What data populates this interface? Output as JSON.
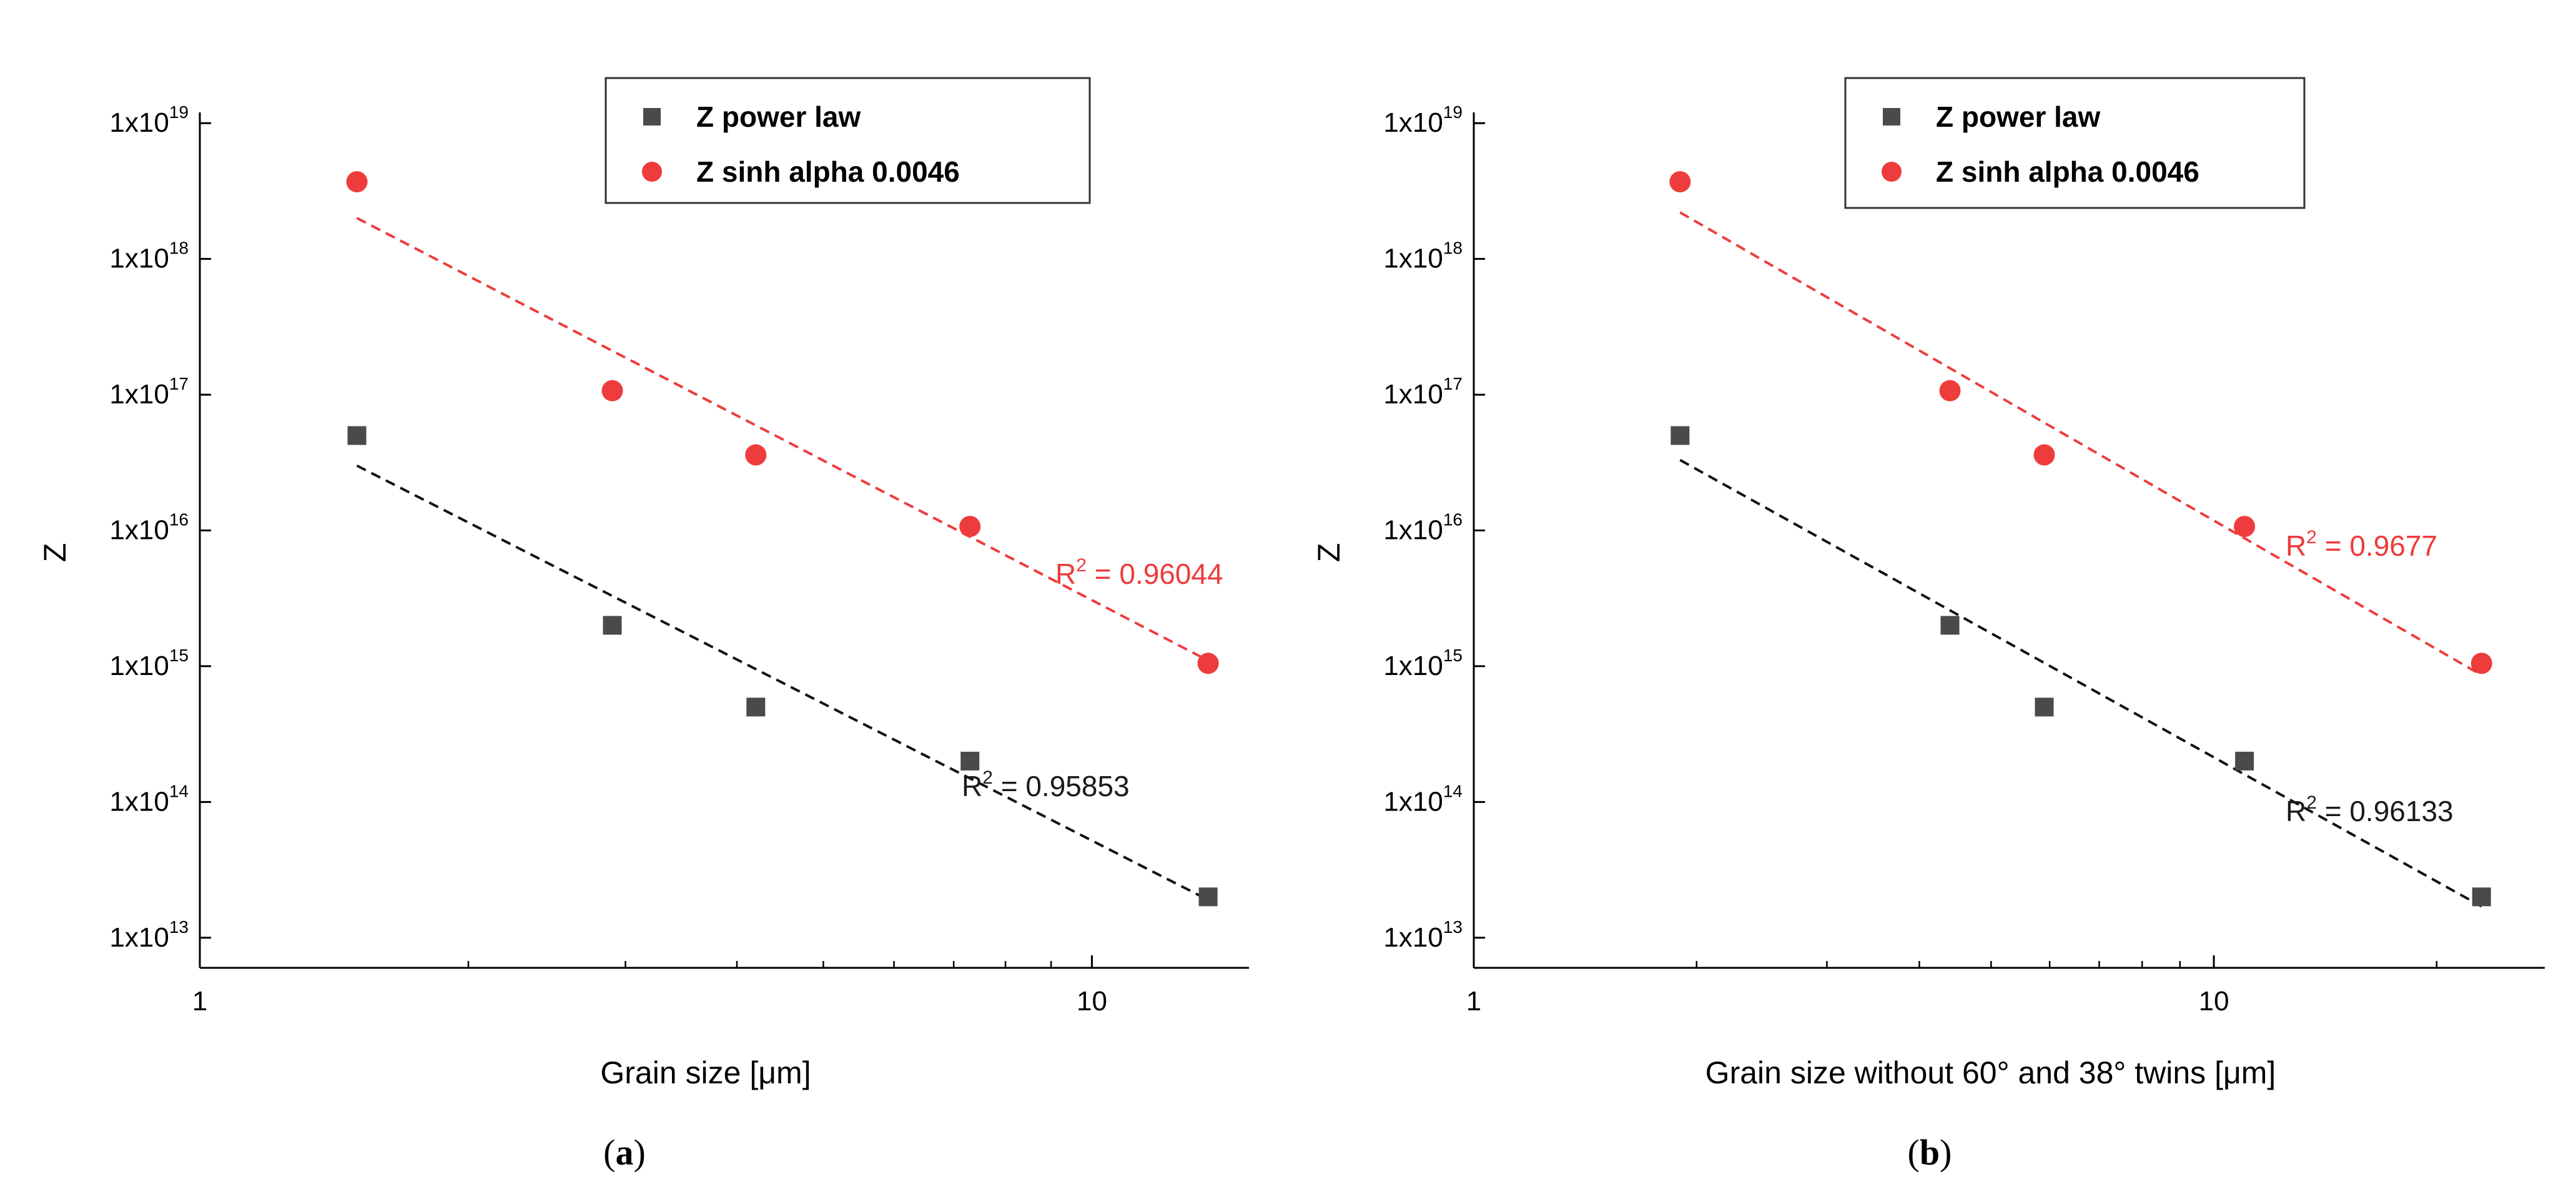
{
  "colors": {
    "power_law": "#4a4a4a",
    "sinh": "#ee3b3b",
    "axis": "#000000"
  },
  "chart_data": [
    {
      "type": "scatter",
      "caption_letter": "a",
      "xlabel": "Grain size [μm]",
      "ylabel": "Z",
      "x_scale": "log",
      "y_scale": "log",
      "xlim": [
        1,
        15
      ],
      "ylim": [
        6000000000000.0,
        1.2e+19
      ],
      "x_ticks": [
        {
          "value": 1,
          "label": "1"
        },
        {
          "value": 10,
          "label": "10"
        }
      ],
      "y_ticks": [
        {
          "value": 10000000000000.0,
          "base": "1x10",
          "exp": "13"
        },
        {
          "value": 100000000000000.0,
          "base": "1x10",
          "exp": "14"
        },
        {
          "value": 1000000000000000.0,
          "base": "1x10",
          "exp": "15"
        },
        {
          "value": 1e+16,
          "base": "1x10",
          "exp": "16"
        },
        {
          "value": 1e+17,
          "base": "1x10",
          "exp": "17"
        },
        {
          "value": 1e+18,
          "base": "1x10",
          "exp": "18"
        },
        {
          "value": 1e+19,
          "base": "1x10",
          "exp": "19"
        }
      ],
      "legend": {
        "position": "top-center",
        "entries": [
          "Z power law",
          "Z sinh alpha 0.0046"
        ]
      },
      "series": [
        {
          "name": "Z power law",
          "marker": "square",
          "x": [
            1.5,
            2.9,
            4.2,
            7.3,
            13.5
          ],
          "y": [
            5e+16,
            2000000000000000.0,
            500000000000000.0,
            200000000000000.0,
            20000000000000.0
          ],
          "fit": {
            "x": [
              1.5,
              13.5
            ],
            "y": [
              3e+16,
              19000000000000.0
            ]
          },
          "r2_prefix": "R",
          "r2_exp": "2",
          "r2_value": " = 0.95853"
        },
        {
          "name": "Z sinh alpha 0.0046",
          "marker": "circle",
          "x": [
            1.5,
            2.9,
            4.2,
            7.3,
            13.5
          ],
          "y": [
            3.7e+18,
            1.07e+17,
            3.6e+16,
            1.07e+16,
            1050000000000000.0
          ],
          "fit": {
            "x": [
              1.5,
              13.5
            ],
            "y": [
              2e+18,
              1100000000000000.0
            ]
          },
          "r2_prefix": "R",
          "r2_exp": "2",
          "r2_value": " = 0.96044"
        }
      ]
    },
    {
      "type": "scatter",
      "caption_letter": "b",
      "xlabel": "Grain size without 60° and 38° twins [μm]",
      "ylabel": "Z",
      "x_scale": "log",
      "y_scale": "log",
      "xlim": [
        1,
        28
      ],
      "ylim": [
        6000000000000.0,
        1.2e+19
      ],
      "x_ticks": [
        {
          "value": 1,
          "label": "1"
        },
        {
          "value": 10,
          "label": "10"
        }
      ],
      "y_ticks": [
        {
          "value": 10000000000000.0,
          "base": "1x10",
          "exp": "13"
        },
        {
          "value": 100000000000000.0,
          "base": "1x10",
          "exp": "14"
        },
        {
          "value": 1000000000000000.0,
          "base": "1x10",
          "exp": "15"
        },
        {
          "value": 1e+16,
          "base": "1x10",
          "exp": "16"
        },
        {
          "value": 1e+17,
          "base": "1x10",
          "exp": "17"
        },
        {
          "value": 1e+18,
          "base": "1x10",
          "exp": "18"
        },
        {
          "value": 1e+19,
          "base": "1x10",
          "exp": "19"
        }
      ],
      "legend": {
        "position": "top-left",
        "entries": [
          "Z power law",
          "Z sinh alpha 0.0046"
        ]
      },
      "series": [
        {
          "name": "Z power law",
          "marker": "square",
          "x": [
            1.9,
            4.4,
            5.9,
            11,
            23
          ],
          "y": [
            5e+16,
            2000000000000000.0,
            500000000000000.0,
            200000000000000.0,
            20000000000000.0
          ],
          "fit": {
            "x": [
              1.9,
              23
            ],
            "y": [
              3.3e+16,
              17000000000000.0
            ]
          },
          "r2_prefix": "R",
          "r2_exp": "2",
          "r2_value": " = 0.96133"
        },
        {
          "name": "Z sinh alpha 0.0046",
          "marker": "circle",
          "x": [
            1.9,
            4.4,
            5.9,
            11,
            23
          ],
          "y": [
            3.7e+18,
            1.07e+17,
            3.6e+16,
            1.07e+16,
            1050000000000000.0
          ],
          "fit": {
            "x": [
              1.9,
              23
            ],
            "y": [
              2.2e+18,
              860000000000000.0
            ]
          },
          "r2_prefix": "R",
          "r2_exp": "2",
          "r2_value": " = 0.9677"
        }
      ]
    }
  ]
}
